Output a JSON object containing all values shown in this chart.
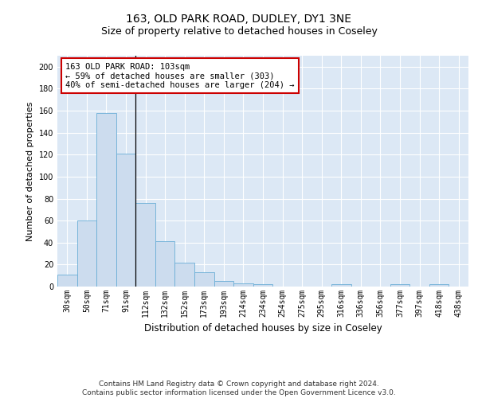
{
  "title1": "163, OLD PARK ROAD, DUDLEY, DY1 3NE",
  "title2": "Size of property relative to detached houses in Coseley",
  "xlabel": "Distribution of detached houses by size in Coseley",
  "ylabel": "Number of detached properties",
  "bar_labels": [
    "30sqm",
    "50sqm",
    "71sqm",
    "91sqm",
    "112sqm",
    "132sqm",
    "152sqm",
    "173sqm",
    "193sqm",
    "214sqm",
    "234sqm",
    "254sqm",
    "275sqm",
    "295sqm",
    "316sqm",
    "336sqm",
    "356sqm",
    "377sqm",
    "397sqm",
    "418sqm",
    "438sqm"
  ],
  "bar_values": [
    11,
    60,
    158,
    121,
    76,
    41,
    22,
    13,
    5,
    3,
    2,
    0,
    0,
    0,
    2,
    0,
    0,
    2,
    0,
    2,
    0
  ],
  "bar_color": "#ccdcee",
  "bar_edge_color": "#6aaed6",
  "background_color": "#dce8f5",
  "vline_x_index": 3,
  "vline_color": "#000000",
  "annotation_line1": "163 OLD PARK ROAD: 103sqm",
  "annotation_line2": "← 59% of detached houses are smaller (303)",
  "annotation_line3": "40% of semi-detached houses are larger (204) →",
  "annotation_box_color": "#ffffff",
  "annotation_border_color": "#cc0000",
  "ylim": [
    0,
    210
  ],
  "yticks": [
    0,
    20,
    40,
    60,
    80,
    100,
    120,
    140,
    160,
    180,
    200
  ],
  "footer_text": "Contains HM Land Registry data © Crown copyright and database right 2024.\nContains public sector information licensed under the Open Government Licence v3.0.",
  "title1_fontsize": 10,
  "title2_fontsize": 9,
  "xlabel_fontsize": 8.5,
  "ylabel_fontsize": 8,
  "tick_fontsize": 7,
  "annotation_fontsize": 7.5,
  "footer_fontsize": 6.5
}
